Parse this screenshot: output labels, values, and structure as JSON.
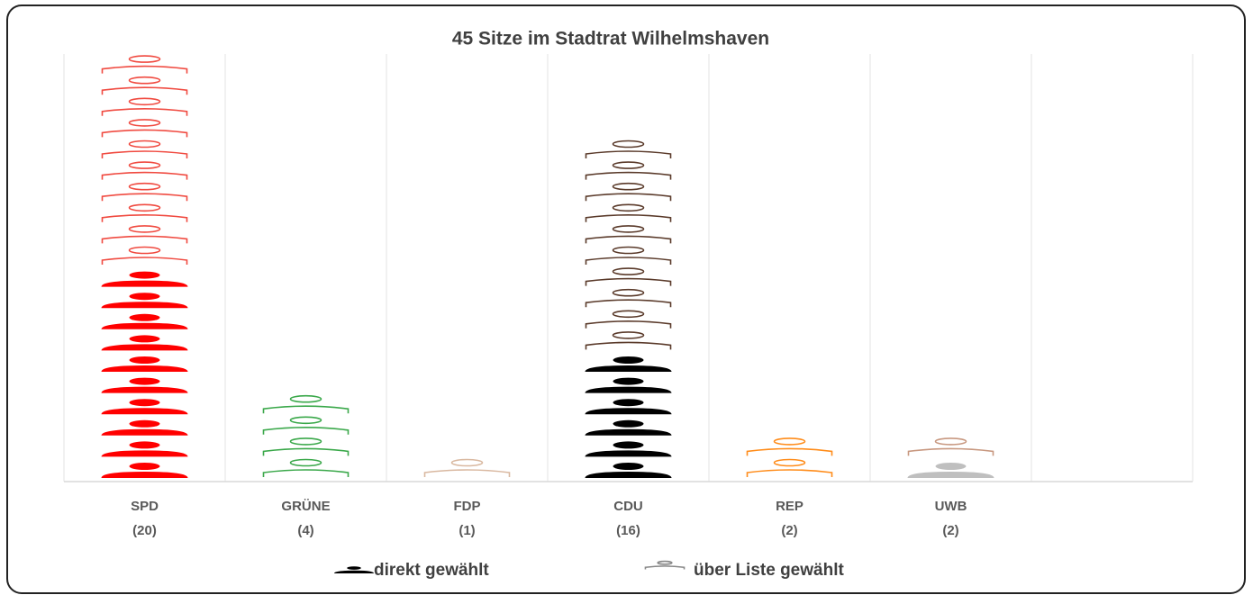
{
  "chart_data": {
    "type": "pictograph",
    "title": "45 Sitze im Stadtrat Wilhelmshaven",
    "categories": [
      "SPD",
      "GRÜNE",
      "FDP",
      "CDU",
      "REP",
      "UWB",
      null
    ],
    "category_counts": [
      "(20)",
      "(4)",
      "(1)",
      "(16)",
      "(2)",
      "(2)",
      null
    ],
    "series": [
      {
        "name": "direkt gewählt",
        "style": "filled",
        "color": "#000000",
        "colors": [
          "#ff0000",
          "#2ca02c",
          "#d9b8a0",
          "#000000",
          "#ff8c1a",
          "#bfbfbf",
          null
        ],
        "values": [
          10,
          0,
          0,
          6,
          0,
          1,
          null
        ]
      },
      {
        "name": "über Liste gewählt",
        "style": "outline",
        "color": "#888888",
        "colors": [
          "#f04a40",
          "#3aa84a",
          "#d9b8a0",
          "#5a3a2a",
          "#ff8c1a",
          "#c89880",
          null
        ],
        "values": [
          10,
          4,
          1,
          10,
          2,
          1,
          null
        ]
      }
    ]
  }
}
